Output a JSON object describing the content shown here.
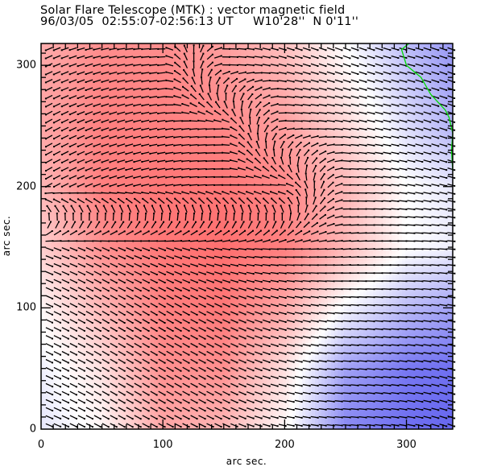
{
  "header": {
    "title": "Solar Flare Telescope (MTK) : vector magnetic field",
    "subtitle": "96/03/05  02:55:07-02:56:13 UT     W10'28''  N 0'11''"
  },
  "chart_data": {
    "type": "vector-field",
    "title": "Solar Flare Telescope (MTK) : vector magnetic field",
    "subtitle": "96/03/05  02:55:07-02:56:13 UT     W10'28''  N 0'11''",
    "date": "96/03/05",
    "time_range": "02:55:07-02:56:13 UT",
    "position": "W10'28''  N 0'11''",
    "xlabel": "arc sec.",
    "ylabel": "arc sec.",
    "xlim": [
      0,
      338
    ],
    "ylim": [
      0,
      318
    ],
    "x_ticks": [
      0,
      100,
      200,
      300
    ],
    "y_ticks": [
      0,
      100,
      200,
      300
    ],
    "x_tick_labels": [
      "0",
      "100",
      "200",
      "300"
    ],
    "y_tick_labels": [
      "0",
      "100",
      "200",
      "300"
    ],
    "minor_tick_step": 10,
    "grid": false,
    "background_field": {
      "description": "line-of-sight field: red = positive, blue = negative, white = neutral",
      "positive_color": "#ff5f5f",
      "negative_color": "#5656ee",
      "neutral_color": "#ffffff",
      "sample_x": [
        0,
        50,
        100,
        150,
        200,
        250,
        300,
        338
      ],
      "sample_y": [
        0,
        50,
        100,
        150,
        200,
        250,
        300,
        318
      ],
      "values": [
        [
          -0.15,
          0.05,
          0.55,
          0.45,
          0.05,
          -0.7,
          -0.85,
          -0.9
        ],
        [
          -0.1,
          0.2,
          0.7,
          0.7,
          0.2,
          -0.55,
          -0.8,
          -0.85
        ],
        [
          0.05,
          0.45,
          0.8,
          0.85,
          0.55,
          -0.05,
          -0.4,
          -0.55
        ],
        [
          0.3,
          0.7,
          0.85,
          0.9,
          0.8,
          0.45,
          0.0,
          -0.1
        ],
        [
          0.45,
          0.8,
          0.85,
          0.85,
          0.75,
          0.45,
          0.0,
          -0.15
        ],
        [
          0.55,
          0.8,
          0.8,
          0.75,
          0.6,
          0.25,
          -0.2,
          -0.45
        ],
        [
          0.55,
          0.75,
          0.75,
          0.65,
          0.45,
          0.05,
          -0.35,
          -0.6
        ],
        [
          0.5,
          0.7,
          0.7,
          0.6,
          0.4,
          0.0,
          -0.4,
          -0.6
        ]
      ]
    },
    "transverse_field": {
      "description": "transverse field direction (degrees, counter-clockwise from +x) on a regular grid",
      "grid_step": 6.6,
      "sample_x": [
        0,
        50,
        100,
        150,
        200,
        250,
        300,
        338
      ],
      "sample_y": [
        0,
        50,
        100,
        150,
        200,
        250,
        300,
        318
      ],
      "angles": [
        [
          -22,
          -28,
          -28,
          -25,
          -12,
          -5,
          -10,
          -20
        ],
        [
          -25,
          -30,
          -30,
          -28,
          -15,
          -5,
          -8,
          -15
        ],
        [
          -25,
          -30,
          -30,
          -25,
          -15,
          -5,
          -5,
          -10
        ],
        [
          -20,
          -25,
          -20,
          -10,
          0,
          5,
          0,
          -5
        ],
        [
          210,
          200,
          190,
          180,
          180,
          0,
          -10,
          -15
        ],
        [
          210,
          200,
          190,
          180,
          0,
          -10,
          -15,
          -20
        ],
        [
          205,
          195,
          185,
          0,
          -15,
          -20,
          -15,
          -20
        ],
        [
          205,
          190,
          180,
          0,
          -18,
          -20,
          -15,
          -20
        ]
      ]
    },
    "neutral_line": {
      "color": "#00dd00",
      "points": [
        [
          302,
          318
        ],
        [
          296,
          313
        ],
        [
          300,
          300
        ],
        [
          312,
          290
        ],
        [
          320,
          276
        ],
        [
          332,
          263
        ],
        [
          335,
          257
        ],
        [
          338,
          244
        ],
        [
          337,
          230
        ],
        [
          340,
          213
        ]
      ]
    }
  }
}
